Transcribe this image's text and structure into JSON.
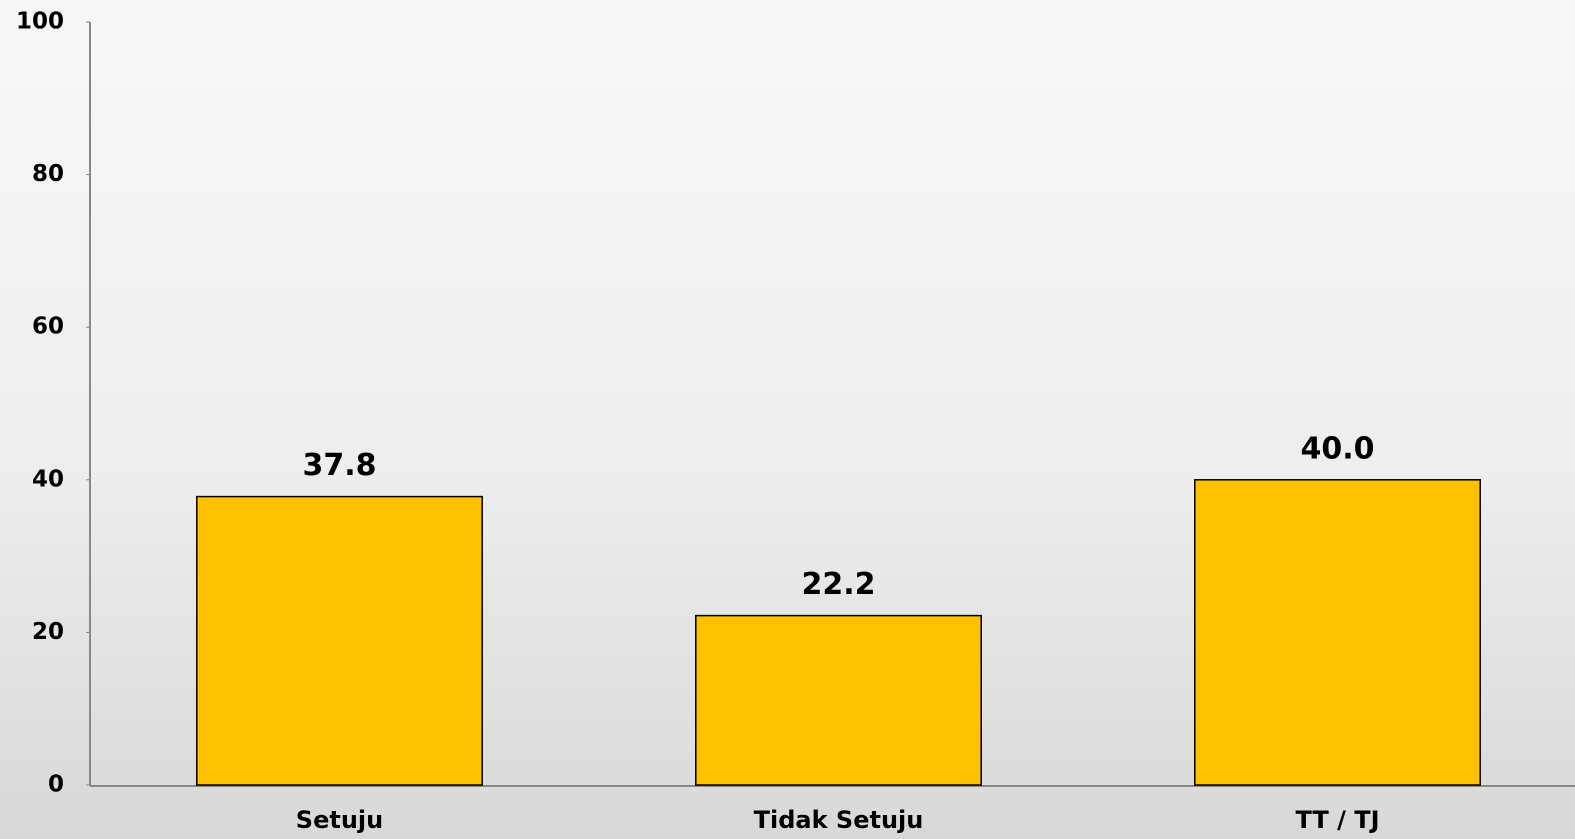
{
  "chart_data": {
    "type": "bar",
    "categories": [
      "Setuju",
      "Tidak Setuju",
      "TT / TJ"
    ],
    "values": [
      37.8,
      22.2,
      40.0
    ],
    "value_labels": [
      "37.8",
      "22.2",
      "40.0"
    ],
    "color": "#ffc000",
    "ylim": [
      0,
      100
    ],
    "yticks": [
      0,
      20,
      40,
      60,
      80,
      100
    ],
    "grid": false
  }
}
